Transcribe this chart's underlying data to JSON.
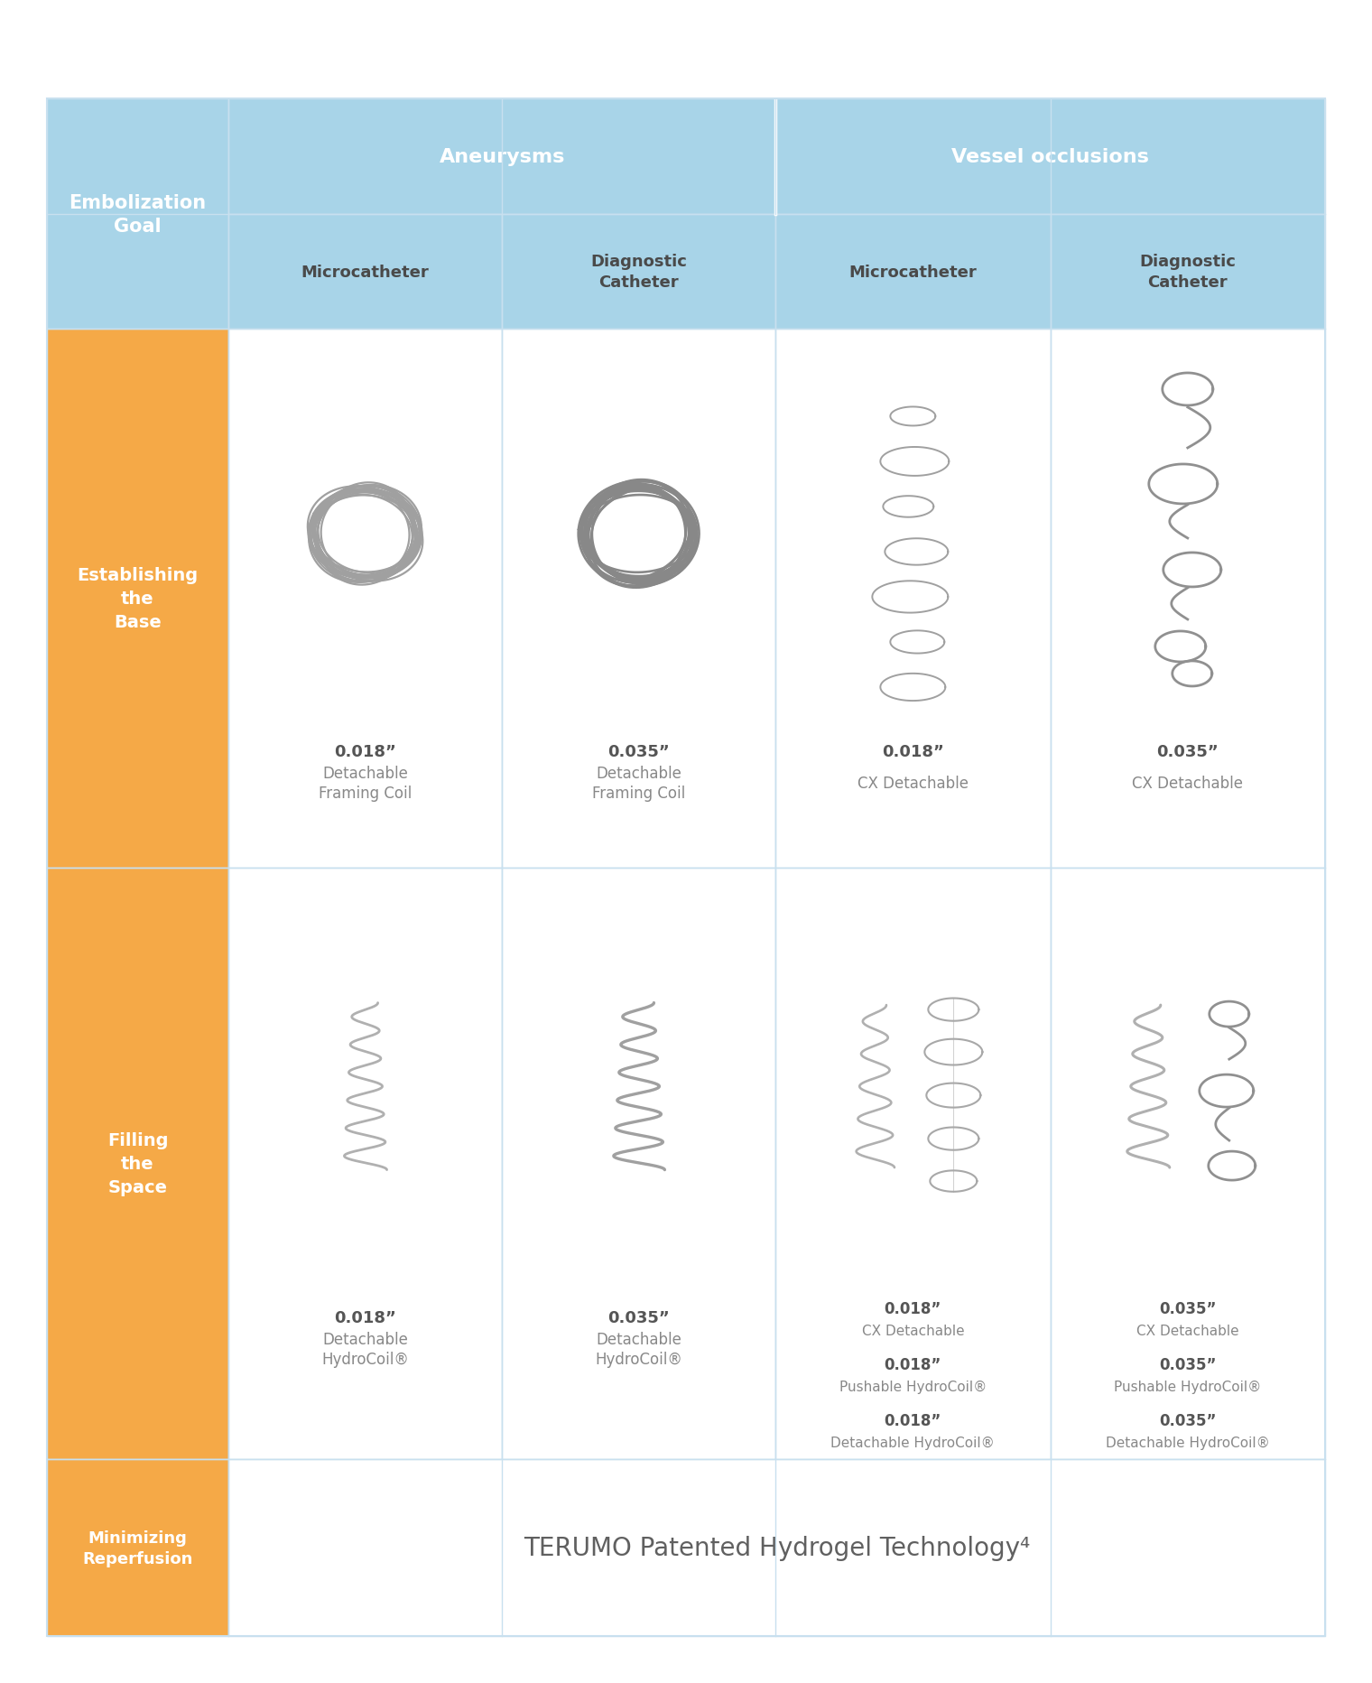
{
  "bg_color": "#ffffff",
  "header_blue": "#a8d4e8",
  "row_orange": "#f5a947",
  "border_color": "#c8e0ef",
  "white": "#ffffff",
  "dark_text": "#606060",
  "gray_text": "#888888",
  "col0_label": "Embolization\nGoal",
  "aneurysms_label": "Aneurysms",
  "vessel_label": "Vessel occlusions",
  "sub_headers": [
    "Microcatheter",
    "Diagnostic\nCatheter",
    "Microcatheter",
    "Diagnostic\nCatheter"
  ],
  "row_labels": [
    "Establishing\nthe\nBase",
    "Filling\nthe\nSpace",
    "Minimizing\nReperfusion"
  ],
  "row1_labels": [
    {
      "size": "0.018”",
      "name": "Detachable\nFraming Coil"
    },
    {
      "size": "0.035”",
      "name": "Detachable\nFraming Coil"
    },
    {
      "size": "0.018”",
      "name": "CX Detachable"
    },
    {
      "size": "0.035”",
      "name": "CX Detachable"
    }
  ],
  "row2_labels_left": [
    {
      "size": "0.018”",
      "name": "Detachable\nHydroCoil®"
    },
    {
      "size": "0.035”",
      "name": "Detachable\nHydroCoil®"
    }
  ],
  "row2_labels_right": [
    [
      {
        "size": "0.018”",
        "name": "CX Detachable"
      },
      {
        "size": "0.018”",
        "name": "Pushable HydroCoil®"
      },
      {
        "size": "0.018”",
        "name": "Detachable HydroCoil®"
      }
    ],
    [
      {
        "size": "0.035”",
        "name": "CX Detachable"
      },
      {
        "size": "0.035”",
        "name": "Pushable HydroCoil®"
      },
      {
        "size": "0.035”",
        "name": "Detachable HydroCoil®"
      }
    ]
  ],
  "row3_text": "TERUMO Patented Hydrogel Technology⁴"
}
